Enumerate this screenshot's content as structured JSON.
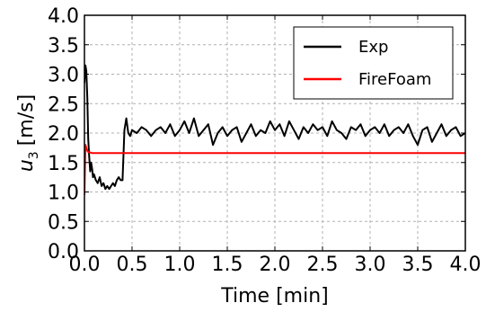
{
  "chart_data": {
    "type": "line",
    "xlabel": "Time [min]",
    "ylabel_symbol": "u",
    "ylabel_sub": "3",
    "ylabel_unit": "[m/s]",
    "xlim": [
      0.0,
      4.0
    ],
    "ylim": [
      0.0,
      4.0
    ],
    "x_ticks": [
      "0.0",
      "0.5",
      "1.0",
      "1.5",
      "2.0",
      "2.5",
      "3.0",
      "3.5",
      "4.0"
    ],
    "y_ticks": [
      "0.0",
      "0.5",
      "1.0",
      "1.5",
      "2.0",
      "2.5",
      "3.0",
      "3.5",
      "4.0"
    ],
    "grid": true,
    "legend_position": "top-right",
    "series": [
      {
        "name": "Exp",
        "color": "#000000",
        "x": [
          0.0,
          0.01,
          0.02,
          0.03,
          0.04,
          0.05,
          0.06,
          0.07,
          0.08,
          0.09,
          0.1,
          0.12,
          0.14,
          0.16,
          0.18,
          0.2,
          0.22,
          0.24,
          0.26,
          0.28,
          0.3,
          0.32,
          0.34,
          0.36,
          0.38,
          0.4,
          0.42,
          0.44,
          0.46,
          0.48,
          0.5,
          0.55,
          0.6,
          0.65,
          0.7,
          0.75,
          0.8,
          0.85,
          0.9,
          0.95,
          1.0,
          1.05,
          1.1,
          1.15,
          1.2,
          1.25,
          1.3,
          1.35,
          1.4,
          1.45,
          1.5,
          1.55,
          1.6,
          1.65,
          1.7,
          1.75,
          1.8,
          1.85,
          1.9,
          1.95,
          2.0,
          2.05,
          2.1,
          2.15,
          2.2,
          2.25,
          2.3,
          2.35,
          2.4,
          2.45,
          2.5,
          2.55,
          2.6,
          2.65,
          2.7,
          2.75,
          2.8,
          2.85,
          2.9,
          2.95,
          3.0,
          3.05,
          3.1,
          3.15,
          3.2,
          3.25,
          3.3,
          3.35,
          3.4,
          3.45,
          3.5,
          3.55,
          3.6,
          3.65,
          3.7,
          3.75,
          3.8,
          3.85,
          3.9,
          3.95,
          4.0
        ],
        "y": [
          2.85,
          3.15,
          3.05,
          2.6,
          1.9,
          1.6,
          1.35,
          1.5,
          1.4,
          1.25,
          1.3,
          1.2,
          1.15,
          1.25,
          1.1,
          1.15,
          1.05,
          1.1,
          1.05,
          1.1,
          1.15,
          1.1,
          1.2,
          1.25,
          1.2,
          1.2,
          2.05,
          2.25,
          2.0,
          1.95,
          2.05,
          2.0,
          2.1,
          2.05,
          1.95,
          2.05,
          2.1,
          2.0,
          2.15,
          1.95,
          2.05,
          2.2,
          2.0,
          2.25,
          1.95,
          2.05,
          2.15,
          1.8,
          2.0,
          2.1,
          1.95,
          2.05,
          2.1,
          1.85,
          2.0,
          2.15,
          1.95,
          2.05,
          2.0,
          2.2,
          2.05,
          2.15,
          1.95,
          2.2,
          2.05,
          1.9,
          2.1,
          2.0,
          2.15,
          2.05,
          2.1,
          1.95,
          2.2,
          2.05,
          2.0,
          1.9,
          2.1,
          2.05,
          2.15,
          1.95,
          2.05,
          2.1,
          2.0,
          2.15,
          1.95,
          2.05,
          2.1,
          2.0,
          2.15,
          1.95,
          1.8,
          2.05,
          2.1,
          1.85,
          2.0,
          2.15,
          1.95,
          2.05,
          2.1,
          1.95,
          2.0
        ]
      },
      {
        "name": "FireFoam",
        "color": "#ff0000",
        "x": [
          0.0,
          0.01,
          0.02,
          0.03,
          0.04,
          0.06,
          0.08,
          0.1,
          0.15,
          0.2,
          0.5,
          1.0,
          2.0,
          3.0,
          4.0
        ],
        "y": [
          0.95,
          1.8,
          1.75,
          1.7,
          1.68,
          1.67,
          1.66,
          1.66,
          1.66,
          1.66,
          1.66,
          1.66,
          1.66,
          1.66,
          1.66
        ]
      }
    ]
  }
}
